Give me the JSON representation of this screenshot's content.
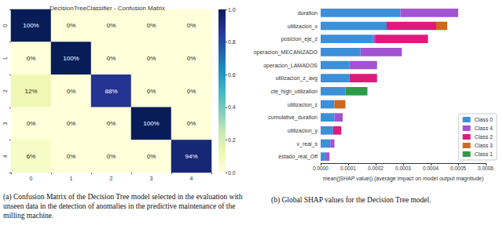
{
  "chart_data": [
    {
      "type": "heatmap",
      "title": "DecisionTreeClassifier - Confusion Matrix",
      "caption": "(a) Confusion Matrix of the Decision Tree model selected in the evaluation with unseen data in the detection of anomalies in the predictive maintenance of the milling machine.",
      "x": [
        "0",
        "1",
        "2",
        "3",
        "4"
      ],
      "y": [
        "0",
        "1",
        "2",
        "3",
        "4"
      ],
      "cells": [
        [
          1.0,
          0,
          0,
          0,
          0
        ],
        [
          0,
          1.0,
          0,
          0,
          0
        ],
        [
          0.12,
          0,
          0.88,
          0,
          0
        ],
        [
          0,
          0,
          0,
          1.0,
          0
        ],
        [
          0.06,
          0,
          0,
          0,
          0.94
        ]
      ],
      "cell_labels": [
        [
          "100%",
          "0%",
          "0%",
          "0%",
          "0%"
        ],
        [
          "0%",
          "100%",
          "0%",
          "0%",
          "0%"
        ],
        [
          "12%",
          "0%",
          "88%",
          "0%",
          "0%"
        ],
        [
          "0%",
          "0%",
          "0%",
          "100%",
          "0%"
        ],
        [
          "6%",
          "0%",
          "0%",
          "0%",
          "94%"
        ]
      ],
      "colorbar": {
        "range": [
          0,
          1
        ],
        "ticks": [
          {
            "value": 0,
            "label": "0.0"
          },
          {
            "value": 0.2,
            "label": "0.2"
          },
          {
            "value": 0.4,
            "label": "0.4"
          },
          {
            "value": 0.6,
            "label": "0.6"
          },
          {
            "value": 0.8,
            "label": "0.8"
          },
          {
            "value": 1,
            "label": "1.0"
          }
        ]
      },
      "grid": false
    },
    {
      "type": "bar",
      "orientation": "horizontal",
      "stacked": true,
      "caption": "(b) Global SHAP values for the Decision Tree model.",
      "xlabel": "mean(|SHAP value|) (average impact on model output magnitude)",
      "categories": [
        "duration",
        "utilizacion_x",
        "posicion_eje_z",
        "operacion_MECANIZADO",
        "operacion_LAMADOS",
        "utilizacion_z_avg",
        "cte_high_utilization",
        "utilizacion_z",
        "cumulative_duration",
        "utilizacion_y",
        "v_real_s",
        "estado_real_Off"
      ],
      "series": [
        {
          "name": "Class 0",
          "color": "#3d8fd8",
          "values": [
            0.00029,
            0.00024,
            0.00019,
            0.000145,
            0.000105,
            0.000105,
            9e-05,
            5e-05,
            5e-05,
            4.5e-05,
            3.5e-05,
            2e-05
          ]
        },
        {
          "name": "Class 4",
          "color": "#a352d4",
          "values": [
            0.00021,
            0,
            1e-05,
            0.00015,
            0.0001,
            0,
            0,
            0,
            3e-05,
            0,
            1.5e-05,
            1.2e-05
          ]
        },
        {
          "name": "Class 2",
          "color": "#e0197d",
          "values": [
            0,
            0.00018,
            0.00019,
            0,
            0,
            0.0001,
            0,
            0,
            0,
            3e-05,
            0,
            0
          ]
        },
        {
          "name": "Class 3",
          "color": "#c96a1f",
          "values": [
            0,
            4e-05,
            0,
            0,
            0,
            0,
            0,
            4e-05,
            0,
            0,
            0,
            0
          ]
        },
        {
          "name": "Class 1",
          "color": "#2e9b4a",
          "values": [
            0,
            0,
            0,
            0,
            0,
            0,
            8e-05,
            0,
            0,
            0,
            0,
            0
          ]
        }
      ],
      "xlim": [
        0,
        0.0006
      ],
      "xticks": [
        {
          "value": 0,
          "label": "0.0000"
        },
        0.0001,
        0.0002,
        0.0003,
        0.0004,
        0.0005,
        0.0006
      ],
      "legend": "lower right",
      "grid": false
    }
  ]
}
